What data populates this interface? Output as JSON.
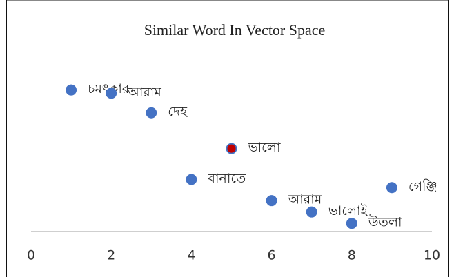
{
  "chart_data": {
    "type": "scatter",
    "title": "Similar Word In Vector Space",
    "x": [
      1,
      2,
      3,
      5,
      4,
      6,
      7,
      8,
      9
    ],
    "values": [
      8.7,
      8.5,
      7.3,
      5.1,
      3.2,
      1.9,
      1.2,
      0.5,
      2.7
    ],
    "point_labels": [
      "চমৎকার",
      "আরাম",
      "দেহ",
      "ভালো",
      "বানাতে",
      "আরাম",
      "ভালোই",
      "উতলা",
      "গেঞ্জি"
    ],
    "point_colors": [
      "#4472c4",
      "#4472c4",
      "#4472c4",
      "#c00000",
      "#4472c4",
      "#4472c4",
      "#4472c4",
      "#4472c4",
      "#4472c4"
    ],
    "color": "#4472c4",
    "xlim": [
      0,
      10
    ],
    "xticks": [
      0,
      2,
      4,
      6,
      8,
      10
    ],
    "ylim": [
      0,
      10
    ]
  }
}
